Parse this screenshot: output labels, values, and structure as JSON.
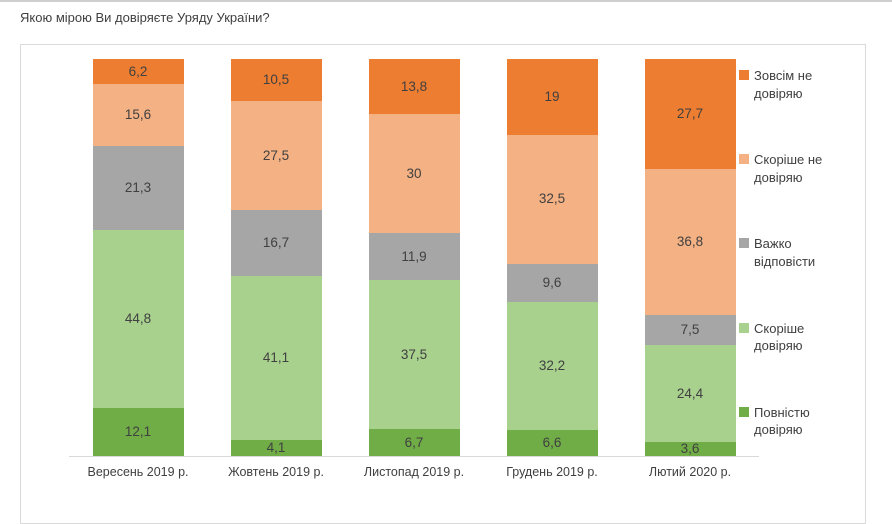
{
  "title": "Якою мірою Ви довіряєте Уряду України?",
  "chart_data": {
    "type": "bar",
    "subtype": "stacked-100-percent",
    "orientation": "vertical",
    "title": "Якою мірою Ви довіряєте Уряду України?",
    "xlabel": "",
    "ylabel": "",
    "ylim": [
      0,
      100
    ],
    "grid": false,
    "legend_position": "right",
    "categories": [
      "Вересень 2019 р.",
      "Жовтень 2019 р.",
      "Листопад 2019 р.",
      "Грудень 2019 р.",
      "Лютий 2020 р."
    ],
    "stack_order_top_to_bottom": [
      "Зовсім не довіряю",
      "Скоріше не довіряю",
      "Важко відповісти",
      "Скоріше довіряю",
      "Повністю довіряю"
    ],
    "series": [
      {
        "name": "Зовсім не довіряю",
        "color": "#ED7D31",
        "values": [
          6.2,
          10.5,
          13.8,
          19,
          27.7
        ],
        "labels": [
          "6,2",
          "10,5",
          "13,8",
          "19",
          "27,7"
        ]
      },
      {
        "name": "Скоріше не довіряю",
        "color": "#F4B183",
        "values": [
          15.6,
          27.5,
          30,
          32.5,
          36.8
        ],
        "labels": [
          "15,6",
          "27,5",
          "30",
          "32,5",
          "36,8"
        ]
      },
      {
        "name": "Важко відповісти",
        "color": "#A6A6A6",
        "values": [
          21.3,
          16.7,
          11.9,
          9.6,
          7.5
        ],
        "labels": [
          "21,3",
          "16,7",
          "11,9",
          "9,6",
          "7,5"
        ]
      },
      {
        "name": "Скоріше довіряю",
        "color": "#A9D18E",
        "values": [
          44.8,
          41.1,
          37.5,
          32.2,
          24.4
        ],
        "labels": [
          "44,8",
          "41,1",
          "37,5",
          "32,2",
          "24,4"
        ]
      },
      {
        "name": "Повністю довіряю",
        "color": "#70AD47",
        "values": [
          12.1,
          4.1,
          6.7,
          6.6,
          3.6
        ],
        "labels": [
          "12,1",
          "4,1",
          "6,7",
          "6,6",
          "3,6"
        ]
      }
    ]
  }
}
